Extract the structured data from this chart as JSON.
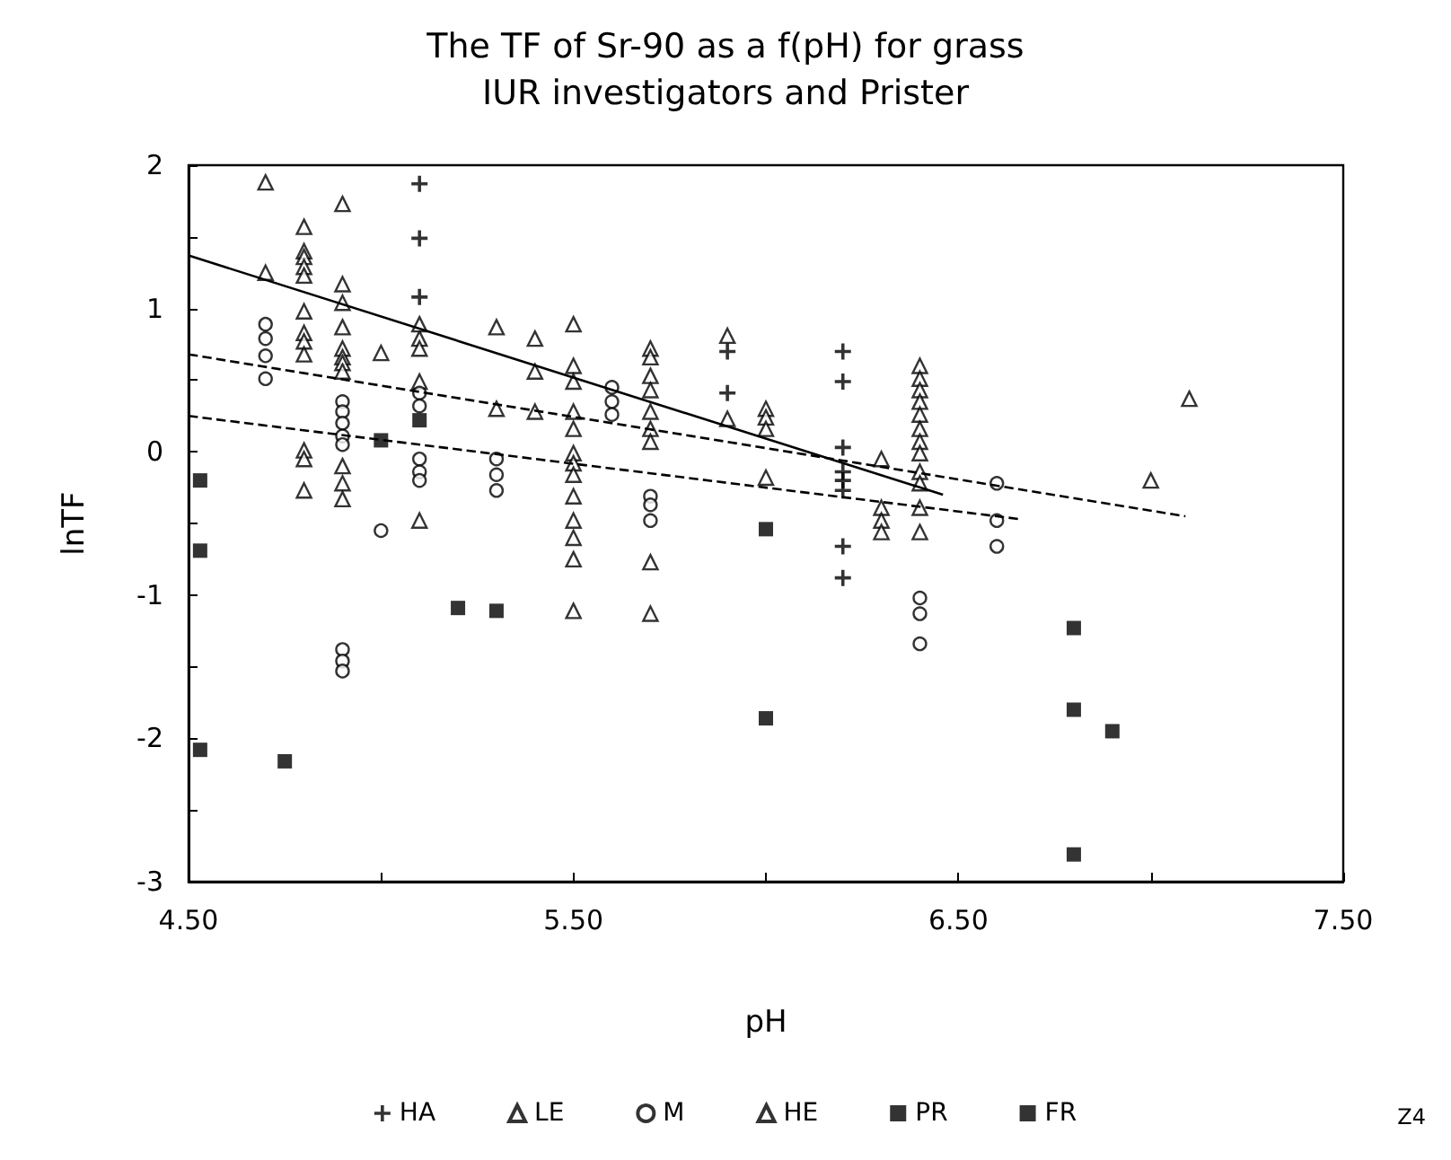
{
  "chart_data": {
    "type": "scatter",
    "title": "The TF of Sr-90 as a f(pH) for grass\nIUR investigators and Prister",
    "xlabel": "pH",
    "ylabel": "lnTF",
    "xlim": [
      4.5,
      7.5
    ],
    "xticks": [
      {
        "value": 4.5,
        "label": "4.50"
      },
      {
        "value": 5,
        "label": null
      },
      {
        "value": 5.5,
        "label": "5.50"
      },
      {
        "value": 6,
        "label": null
      },
      {
        "value": 6.5,
        "label": "6.50"
      },
      {
        "value": 7,
        "label": null
      },
      {
        "value": 7.5,
        "label": "7.50"
      }
    ],
    "ylim": [
      -3,
      2
    ],
    "yticks": [
      -3,
      {
        "value": -2.5,
        "label": null
      },
      -2,
      {
        "value": -1.5,
        "label": null
      },
      -1,
      {
        "value": -0.5,
        "label": null
      },
      0,
      {
        "value": 0.5,
        "label": null
      },
      1,
      {
        "value": 1.5,
        "label": null
      },
      2
    ],
    "grid": false,
    "legend": "bottom",
    "annotations": [
      "Z4"
    ],
    "series": [
      {
        "name": "HA",
        "type": "scatter",
        "marker": "cross",
        "color": "#000000",
        "x": [
          5.1,
          5.1,
          5.1,
          5.9,
          5.9,
          6.2,
          6.2,
          6.2,
          6.2,
          6.2,
          6.2,
          6.2,
          6.2
        ],
        "values": [
          1.87,
          1.49,
          1.08,
          0.7,
          0.41,
          0.7,
          0.49,
          0.03,
          -0.14,
          -0.2,
          -0.27,
          -0.66,
          -0.88
        ]
      },
      {
        "name": "LE",
        "type": "scatter",
        "marker": "triangle",
        "color": "#000000",
        "x": [
          4.8,
          4.8,
          4.8,
          4.8,
          4.8,
          4.8,
          4.8,
          4.8,
          4.8,
          4.8,
          4.8,
          4.8,
          4.9,
          4.9,
          4.9,
          4.9,
          4.9,
          4.9,
          4.9,
          4.9,
          4.9,
          4.9,
          4.9,
          5.0,
          5.1,
          5.1,
          5.1,
          5.1,
          5.3,
          5.3,
          5.4,
          5.4,
          5.4,
          5.5,
          5.5,
          5.5,
          5.5,
          5.5,
          5.5,
          5.5,
          5.5,
          5.5,
          5.5,
          5.5,
          5.5,
          5.5,
          5.7,
          5.7,
          5.7,
          5.7,
          5.7,
          5.7,
          5.7,
          5.7,
          5.7,
          6.0,
          6.0,
          6.0,
          6.0,
          6.3,
          6.3,
          6.3,
          6.3,
          6.4,
          6.4,
          6.4,
          6.4,
          6.4,
          6.4,
          6.4,
          6.4,
          6.4,
          6.4,
          6.4,
          6.4,
          7.0,
          7.1
        ],
        "values": [
          1.57,
          1.4,
          1.36,
          1.29,
          1.23,
          0.98,
          0.83,
          0.77,
          0.68,
          0.01,
          -0.05,
          -0.27,
          1.73,
          1.17,
          1.04,
          0.87,
          0.72,
          0.66,
          0.62,
          0.56,
          -0.1,
          -0.22,
          -0.33,
          0.69,
          0.79,
          0.72,
          0.49,
          -0.48,
          0.87,
          0.3,
          0.79,
          0.56,
          0.28,
          0.89,
          0.6,
          0.49,
          0.28,
          0.16,
          -0.01,
          -0.08,
          -0.16,
          -0.31,
          -0.48,
          -0.6,
          -0.75,
          -1.11,
          0.72,
          0.66,
          0.53,
          0.43,
          0.28,
          0.16,
          0.07,
          -0.77,
          -1.13,
          0.3,
          0.24,
          0.16,
          -0.18,
          -0.05,
          -0.39,
          -0.48,
          -0.56,
          0.6,
          0.51,
          0.43,
          0.35,
          0.26,
          0.16,
          0.07,
          -0.01,
          -0.14,
          -0.22,
          -0.39,
          -0.56,
          -0.2,
          0.37
        ]
      },
      {
        "name": "M",
        "type": "scatter",
        "marker": "circle",
        "color": "#000000",
        "x": [
          4.7,
          4.7,
          4.7,
          4.7,
          4.9,
          4.9,
          4.9,
          4.9,
          4.9,
          4.9,
          4.9,
          4.9,
          5.0,
          5.1,
          5.1,
          5.1,
          5.1,
          5.1,
          5.3,
          5.3,
          5.3,
          5.6,
          5.6,
          5.6,
          5.7,
          5.7,
          5.7,
          6.4,
          6.4,
          6.4,
          6.6,
          6.6,
          6.6
        ],
        "values": [
          0.89,
          0.79,
          0.67,
          0.51,
          0.35,
          0.28,
          0.2,
          0.11,
          0.05,
          -1.38,
          -1.46,
          -1.53,
          -0.55,
          0.41,
          0.32,
          -0.05,
          -0.14,
          -0.2,
          -0.05,
          -0.16,
          -0.27,
          0.45,
          0.35,
          0.26,
          -0.31,
          -0.37,
          -0.48,
          -1.02,
          -1.13,
          -1.34,
          -0.22,
          -0.48,
          -0.66
        ]
      },
      {
        "name": "HE",
        "type": "scatter",
        "marker": "triangle",
        "color": "#000000",
        "x": [
          4.7,
          4.7,
          5.1,
          5.9,
          5.9
        ],
        "values": [
          1.88,
          1.25,
          0.89,
          0.81,
          0.23
        ]
      },
      {
        "name": "PR",
        "type": "scatter",
        "marker": "square",
        "color": "#000000",
        "x": [
          5.0,
          5.1,
          6.0,
          6.0,
          6.8,
          6.8
        ],
        "values": [
          0.08,
          0.22,
          -0.54,
          -1.86,
          -1.23,
          -2.81
        ]
      },
      {
        "name": "FR",
        "type": "scatter",
        "marker": "square",
        "color": "#000000",
        "x": [
          4.53,
          4.53,
          4.53,
          4.75,
          5.2,
          5.3,
          6.8,
          6.9
        ],
        "values": [
          -0.2,
          -0.69,
          -2.08,
          -2.16,
          -1.09,
          -1.11,
          -1.8,
          -1.95
        ]
      },
      {
        "type": "line",
        "line_style": "solid",
        "color": "#000000",
        "x": [
          4.5,
          6.46
        ],
        "values": [
          1.37,
          -0.3
        ]
      },
      {
        "type": "line",
        "line_style": "dashed",
        "color": "#000000",
        "x": [
          4.5,
          7.09
        ],
        "values": [
          0.68,
          -0.45
        ]
      },
      {
        "type": "line",
        "line_style": "dashed",
        "color": "#000000",
        "x": [
          4.5,
          6.66
        ],
        "values": [
          0.25,
          -0.47
        ]
      }
    ]
  }
}
